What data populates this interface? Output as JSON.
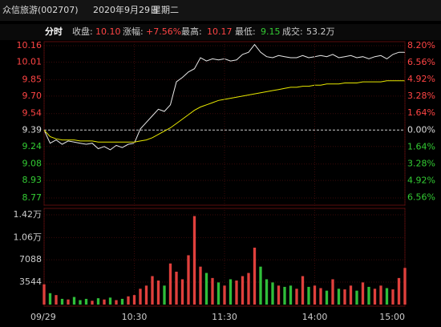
{
  "header": {
    "name": "众信旅游(002707)",
    "date": "2020年9月29日",
    "weekday": "星期二"
  },
  "info": {
    "mode": "分时",
    "close_label": "收盘:",
    "close": "10.10",
    "change_label": "涨幅:",
    "change": "+7.56%",
    "high_label": "最高:",
    "high": "10.17",
    "low_label": "最低:",
    "low": "9.15",
    "volume_label": "成交:",
    "volume": "53.2万"
  },
  "chart_data": [
    {
      "type": "line",
      "x": [
        0,
        4,
        8,
        12,
        16,
        20,
        24,
        28,
        32,
        36,
        40,
        44,
        48,
        52,
        56,
        60,
        64,
        68,
        72,
        76,
        80,
        84,
        88,
        92,
        96,
        100,
        104,
        108,
        112,
        116,
        120,
        124,
        128,
        132,
        136,
        140,
        144,
        148,
        152,
        156,
        160,
        164,
        168,
        172,
        176,
        180,
        184,
        188,
        192,
        196,
        200,
        204,
        208,
        212,
        216,
        220,
        224,
        228,
        232,
        236,
        240
      ],
      "xlim": [
        0,
        240
      ],
      "ylim": [
        8.77,
        10.16
      ],
      "yticks": [
        10.16,
        10.01,
        9.85,
        {
          "value": 9.7,
          "label": "9.70"
        },
        9.54,
        9.39,
        9.24,
        9.08,
        8.93,
        8.77
      ],
      "y2lim": [
        -6.6,
        8.2
      ],
      "y2ticks": [
        {
          "value": 8.2,
          "label": "8.20%"
        },
        {
          "value": 6.56,
          "label": "6.56%"
        },
        {
          "value": 4.92,
          "label": "4.92%"
        },
        {
          "value": 3.28,
          "label": "3.28%"
        },
        {
          "value": 1.64,
          "label": "1.64%"
        },
        {
          "value": 0,
          "label": "0.00%"
        },
        {
          "value": -1.64,
          "label": "1.64%"
        },
        {
          "value": -3.28,
          "label": "3.28%"
        },
        {
          "value": -4.92,
          "label": "4.92%"
        },
        {
          "value": -6.56,
          "label": "6.56%"
        }
      ],
      "base": 9.39,
      "series": [
        {
          "name": "价格",
          "color": "#e8e8e8",
          "values": [
            9.39,
            9.27,
            9.3,
            9.26,
            9.29,
            9.28,
            9.27,
            9.26,
            9.27,
            9.22,
            9.24,
            9.21,
            9.25,
            9.23,
            9.26,
            9.27,
            9.4,
            9.46,
            9.52,
            9.58,
            9.56,
            9.62,
            9.83,
            9.87,
            9.92,
            9.95,
            10.05,
            10.02,
            10.04,
            10.03,
            10.04,
            10.02,
            10.03,
            10.08,
            10.1,
            10.17,
            10.1,
            10.06,
            10.05,
            10.07,
            10.06,
            10.05,
            10.05,
            10.07,
            10.05,
            10.06,
            10.07,
            10.06,
            10.08,
            10.05,
            10.06,
            10.07,
            10.05,
            10.06,
            10.04,
            10.06,
            10.07,
            10.04,
            10.08,
            10.1,
            10.1
          ]
        },
        {
          "name": "均价",
          "color": "#e8e800",
          "values": [
            9.39,
            9.33,
            9.31,
            9.3,
            9.3,
            9.3,
            9.29,
            9.29,
            9.29,
            9.28,
            9.28,
            9.28,
            9.28,
            9.28,
            9.28,
            9.28,
            9.29,
            9.3,
            9.32,
            9.35,
            9.38,
            9.41,
            9.45,
            9.49,
            9.53,
            9.57,
            9.6,
            9.62,
            9.64,
            9.66,
            9.67,
            9.68,
            9.69,
            9.7,
            9.71,
            9.72,
            9.73,
            9.74,
            9.75,
            9.76,
            9.77,
            9.78,
            9.78,
            9.79,
            9.79,
            9.8,
            9.8,
            9.81,
            9.81,
            9.81,
            9.82,
            9.82,
            9.82,
            9.83,
            9.83,
            9.83,
            9.83,
            9.84,
            9.84,
            9.84,
            9.84
          ]
        }
      ]
    },
    {
      "type": "bar",
      "x": [
        0,
        4,
        8,
        12,
        16,
        20,
        24,
        28,
        32,
        36,
        40,
        44,
        48,
        52,
        56,
        60,
        64,
        68,
        72,
        76,
        80,
        84,
        88,
        92,
        96,
        100,
        104,
        108,
        112,
        116,
        120,
        124,
        128,
        132,
        136,
        140,
        144,
        148,
        152,
        156,
        160,
        164,
        168,
        172,
        176,
        180,
        184,
        188,
        192,
        196,
        200,
        204,
        208,
        212,
        216,
        220,
        224,
        228,
        232,
        236,
        240
      ],
      "xlim": [
        0,
        240
      ],
      "xticks": [
        {
          "value": 0,
          "label": "09/29"
        },
        {
          "value": 60,
          "label": "10:30"
        },
        {
          "value": 120,
          "label": "11:30"
        },
        {
          "value": 180,
          "label": "14:00"
        },
        {
          "value": 240,
          "label": "15:00"
        }
      ],
      "ylim": [
        0,
        14200
      ],
      "yticks": [
        {
          "value": 14200,
          "label": "1.42万"
        },
        {
          "value": 10600,
          "label": "1.06万"
        },
        7088,
        3544
      ],
      "up_color": "#e0403c",
      "down_color": "#2fbf3a",
      "values": [
        3200,
        1800,
        1500,
        900,
        800,
        1200,
        700,
        900,
        600,
        1000,
        800,
        1100,
        700,
        900,
        1300,
        1500,
        2500,
        3000,
        4500,
        3800,
        3000,
        6500,
        5200,
        4000,
        7800,
        14000,
        6000,
        5000,
        4200,
        3500,
        3000,
        4000,
        3800,
        4500,
        5000,
        9000,
        6000,
        4000,
        3500,
        3000,
        2800,
        3000,
        2500,
        4500,
        2800,
        3000,
        2600,
        2200,
        4000,
        2500,
        2400,
        3000,
        2200,
        3500,
        2800,
        2500,
        3000,
        2600,
        2400,
        4200,
        5800
      ]
    }
  ]
}
